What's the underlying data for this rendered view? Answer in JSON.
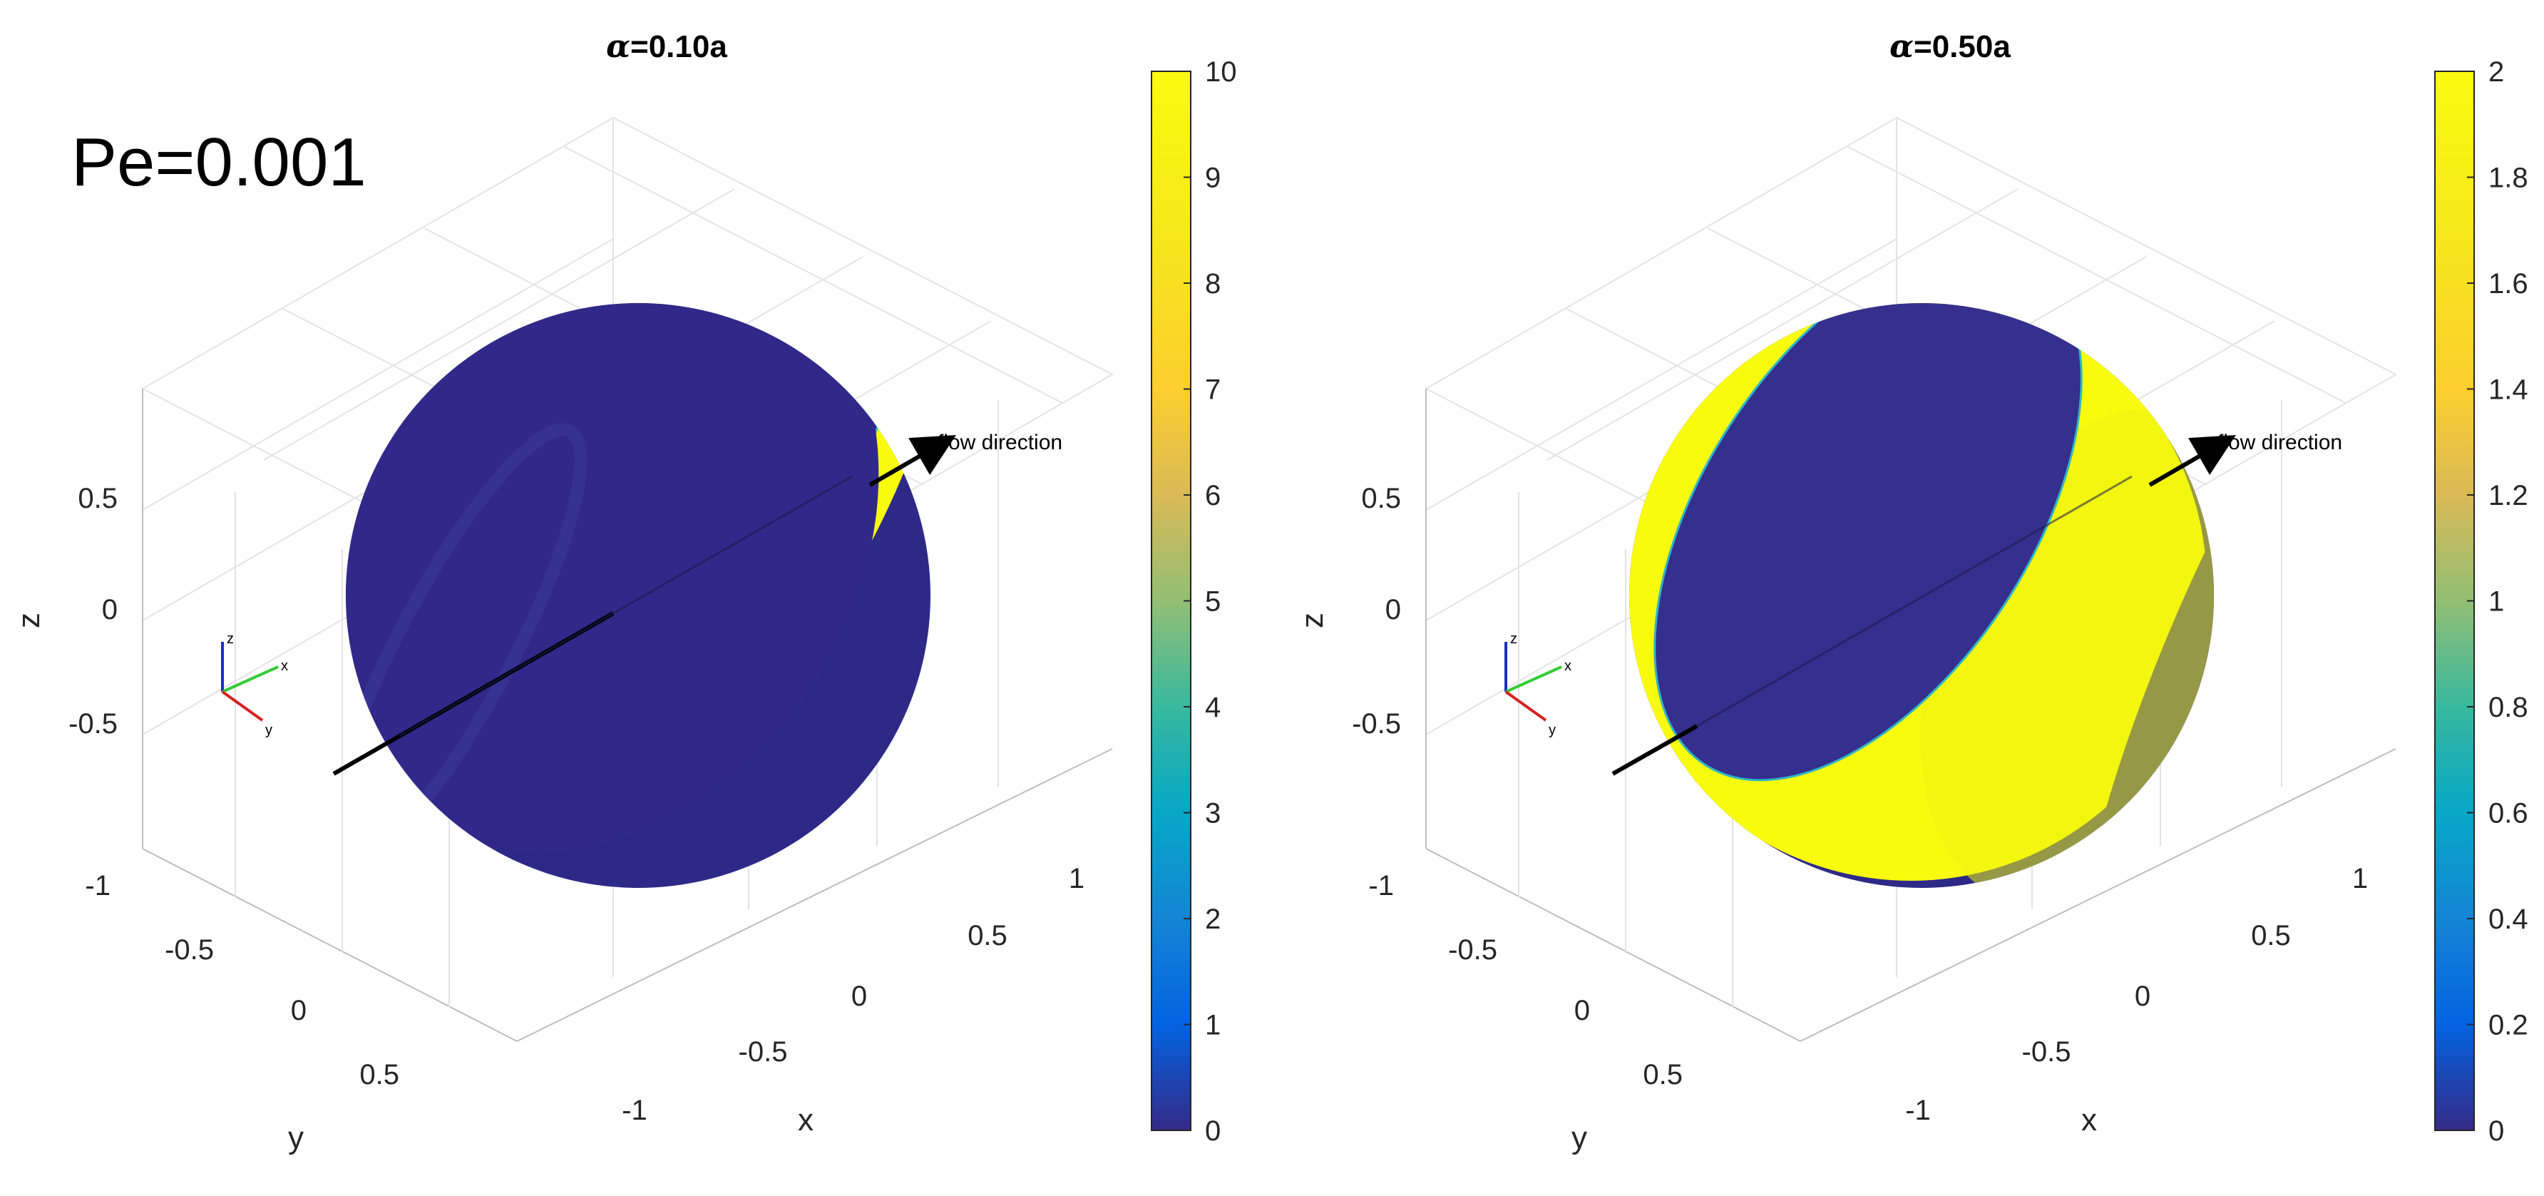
{
  "annotation": "Pe=0.001",
  "colors": {
    "low": "#352a87",
    "high": "#f9fb0e",
    "sphere_dark": "#2d2a87"
  },
  "chart_data": [
    {
      "type": "surface",
      "title_symbol": "α",
      "title_value": "=0.10a",
      "zlabel": "z",
      "xlabel": "x",
      "ylabel": "y",
      "z_ticks": [
        "0.5",
        "0",
        "-0.5"
      ],
      "y_ticks": [
        "-1",
        "-0.5",
        "0",
        "0.5"
      ],
      "x_ticks": [
        "-1",
        "-0.5",
        "0",
        "0.5",
        "1"
      ],
      "colorbar_range": [
        0,
        10
      ],
      "colorbar_ticks": [
        "10",
        "9",
        "8",
        "7",
        "6",
        "5",
        "4",
        "3",
        "2",
        "1",
        "0"
      ],
      "band": "narrow yellow ring",
      "arrow_label": "flow direction",
      "triad": [
        "z",
        "x",
        "y"
      ]
    },
    {
      "type": "surface",
      "title_symbol": "α",
      "title_value": "=0.50a",
      "zlabel": "z",
      "xlabel": "x",
      "ylabel": "y",
      "z_ticks": [
        "0.5",
        "0",
        "-0.5"
      ],
      "y_ticks": [
        "-1",
        "-0.5",
        "0",
        "0.5"
      ],
      "x_ticks": [
        "-1",
        "-0.5",
        "0",
        "0.5",
        "1"
      ],
      "colorbar_range": [
        0,
        2
      ],
      "colorbar_ticks": [
        "2",
        "1.8",
        "1.6",
        "1.4",
        "1.2",
        "1",
        "0.8",
        "0.6",
        "0.4",
        "0.2",
        "0"
      ],
      "band": "wide yellow crescent",
      "arrow_label": "flow direction",
      "triad": [
        "z",
        "x",
        "y"
      ]
    }
  ]
}
